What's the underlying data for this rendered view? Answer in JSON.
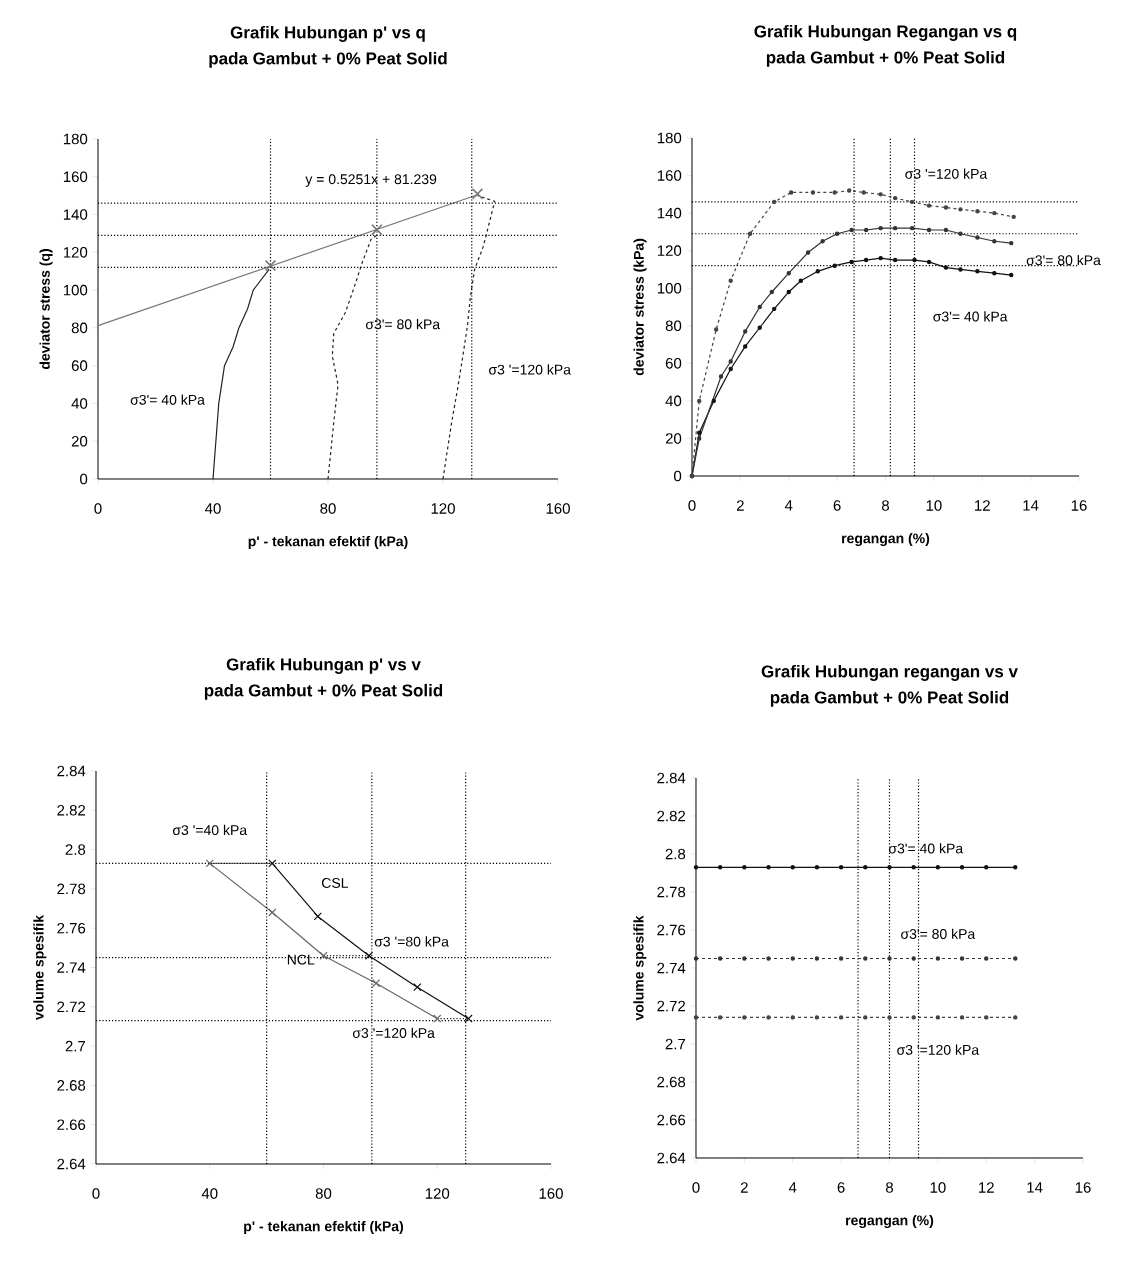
{
  "chart_data": [
    {
      "type": "line",
      "title": "Grafik Hubungan p' vs q",
      "subtitle": "pada Gambut + 0% Peat Solid",
      "xlabel": "p' - tekanan efektif (kPa)",
      "ylabel": "deviator stress (q)",
      "xlim": [
        0,
        160
      ],
      "xticks": [
        0,
        40,
        80,
        120,
        160
      ],
      "ylim": [
        0,
        180
      ],
      "yticks": [
        0,
        20,
        40,
        60,
        80,
        100,
        120,
        140,
        160,
        180
      ],
      "series": [
        {
          "name": "σ3'= 40 kPa",
          "color": "#222222",
          "line_style": "solid",
          "marker": "none",
          "x": [
            40,
            41,
            42,
            43,
            44,
            47,
            49,
            52,
            54,
            59.5
          ],
          "values": [
            0,
            20,
            40,
            50,
            60,
            70,
            80,
            90,
            100,
            111
          ]
        },
        {
          "name": "σ3'= 80 kPa",
          "color": "#222222",
          "line_style": "dashed",
          "marker": "none",
          "x": [
            80,
            82,
            83.5,
            81.5,
            82,
            86,
            89,
            92,
            95,
            97
          ],
          "values": [
            0,
            30,
            50,
            65,
            77,
            88,
            101,
            115,
            127,
            129
          ]
        },
        {
          "name": "σ3 '=120 kPa",
          "color": "#222222",
          "line_style": "dashed",
          "marker": "none",
          "x": [
            120,
            123,
            125,
            127,
            128.5,
            129.5,
            131,
            134,
            137,
            138,
            132
          ],
          "values": [
            0,
            30,
            47,
            66,
            81,
            96,
            111,
            123,
            141,
            147,
            150
          ]
        },
        {
          "name": "y = 0.5251x + 81.239",
          "color": "#777777",
          "line_style": "solid",
          "marker": "none",
          "x": [
            0,
            132
          ],
          "values": [
            81.2,
            150.5
          ]
        },
        {
          "type": "scatter",
          "color": "#777777",
          "marker": "cross",
          "x": [
            60,
            97,
            132
          ],
          "values": [
            113,
            132,
            151
          ]
        }
      ],
      "ref_lines": [
        {
          "axis": "y",
          "value": 146,
          "line_style": "dotted"
        },
        {
          "axis": "y",
          "value": 129,
          "line_style": "dotted"
        },
        {
          "axis": "y",
          "value": 112,
          "line_style": "dotted"
        },
        {
          "axis": "x",
          "value": 60,
          "line_style": "dotted"
        },
        {
          "axis": "x",
          "value": 97,
          "line_style": "dotted"
        },
        {
          "axis": "x",
          "value": 130,
          "line_style": "dotted"
        }
      ]
    },
    {
      "type": "line",
      "title": "Grafik Hubungan Regangan vs q",
      "subtitle": "pada Gambut + 0% Peat Solid",
      "xlabel": "regangan (%)",
      "ylabel": "deviator stress (kPa)",
      "xlim": [
        0,
        16
      ],
      "xticks": [
        0,
        2,
        4,
        6,
        8,
        10,
        12,
        14,
        16
      ],
      "ylim": [
        0,
        180
      ],
      "yticks": [
        0,
        20,
        40,
        60,
        80,
        100,
        120,
        140,
        160,
        180
      ],
      "series": [
        {
          "name": "σ3'= 40 kPa",
          "color": "#111111",
          "line_style": "solid",
          "marker": "circle",
          "x": [
            0,
            0.3,
            0.9,
            1.6,
            2.2,
            2.8,
            3.4,
            4.0,
            4.5,
            5.2,
            5.9,
            6.6,
            7.2,
            7.8,
            8.4,
            9.2,
            9.8,
            10.5,
            11.1,
            11.8,
            12.5,
            13.2
          ],
          "values": [
            0,
            23,
            40,
            57,
            69,
            79,
            89,
            98,
            104,
            109,
            112,
            114,
            115,
            116,
            115,
            115,
            114,
            111,
            110,
            109,
            108,
            107
          ]
        },
        {
          "name": "σ3'= 80 kPa",
          "color": "#333333",
          "line_style": "solid",
          "marker": "circle",
          "x": [
            0,
            0.3,
            1.2,
            1.6,
            2.2,
            2.8,
            3.3,
            4.0,
            4.8,
            5.4,
            6.0,
            6.6,
            7.2,
            7.8,
            8.4,
            9.1,
            9.8,
            10.5,
            11.1,
            11.8,
            12.5,
            13.2
          ],
          "values": [
            0,
            20,
            53,
            61,
            77,
            90,
            98,
            108,
            119,
            125,
            129,
            131,
            131,
            132,
            132,
            132,
            131,
            131,
            129,
            127,
            125,
            124
          ]
        },
        {
          "name": "σ3 '=120 kPa",
          "color": "#444444",
          "line_style": "dashed",
          "marker": "circle",
          "x": [
            0,
            0.3,
            1.0,
            1.6,
            2.4,
            3.4,
            4.1,
            5.0,
            5.9,
            6.5,
            7.1,
            7.8,
            8.4,
            9.1,
            9.8,
            10.5,
            11.1,
            11.8,
            12.5,
            13.3
          ],
          "values": [
            0,
            40,
            78,
            104,
            129,
            146,
            151,
            151,
            151,
            152,
            151,
            150,
            148,
            146,
            144,
            143,
            142,
            141,
            140,
            138
          ]
        }
      ],
      "ref_lines": [
        {
          "axis": "y",
          "value": 146,
          "line_style": "dotted"
        },
        {
          "axis": "y",
          "value": 129,
          "line_style": "dotted"
        },
        {
          "axis": "y",
          "value": 112,
          "line_style": "dotted"
        },
        {
          "axis": "x",
          "value": 6.7,
          "line_style": "dotted"
        },
        {
          "axis": "x",
          "value": 8.2,
          "line_style": "dotted"
        },
        {
          "axis": "x",
          "value": 9.2,
          "line_style": "dotted"
        }
      ]
    },
    {
      "type": "line",
      "title": "Grafik Hubungan p' vs v",
      "subtitle": "pada Gambut + 0% Peat Solid",
      "xlabel": "p' - tekanan efektif (kPa)",
      "ylabel": "volume spesifik",
      "xlim": [
        0,
        160
      ],
      "xticks": [
        0,
        40,
        80,
        120,
        160
      ],
      "ylim": [
        2.64,
        2.84
      ],
      "yticks": [
        2.64,
        2.66,
        2.68,
        2.7,
        2.72,
        2.74,
        2.76,
        2.78,
        2.8,
        2.82,
        2.84
      ],
      "series": [
        {
          "name": "NCL",
          "color": "#666666",
          "line_style": "solid",
          "marker": "cross",
          "x": [
            40,
            62,
            80,
            98.5,
            120
          ],
          "values": [
            2.793,
            2.768,
            2.746,
            2.732,
            2.714
          ]
        },
        {
          "name": "CSL",
          "color": "#111111",
          "line_style": "solid",
          "marker": "cross",
          "x": [
            62,
            78,
            96,
            113,
            131
          ],
          "values": [
            2.793,
            2.766,
            2.746,
            2.73,
            2.714
          ]
        },
        {
          "name": "σ3 '=40 kPa",
          "color": "#222222",
          "line_style": "dotted",
          "marker": "none",
          "x": [
            40,
            62
          ],
          "values": [
            2.793,
            2.793
          ]
        },
        {
          "name": "σ3 '=80 kPa",
          "color": "#222222",
          "line_style": "dotted",
          "marker": "none",
          "x": [
            80,
            96
          ],
          "values": [
            2.746,
            2.746
          ]
        },
        {
          "name": "σ3 '=120 kPa",
          "color": "#222222",
          "line_style": "dotted",
          "marker": "none",
          "x": [
            120,
            131
          ],
          "values": [
            2.714,
            2.714
          ]
        }
      ],
      "ref_lines": [
        {
          "axis": "y",
          "value": 2.793,
          "line_style": "dotted"
        },
        {
          "axis": "y",
          "value": 2.745,
          "line_style": "dotted"
        },
        {
          "axis": "y",
          "value": 2.713,
          "line_style": "dotted"
        },
        {
          "axis": "x",
          "value": 60,
          "line_style": "dotted"
        },
        {
          "axis": "x",
          "value": 97,
          "line_style": "dotted"
        },
        {
          "axis": "x",
          "value": 130,
          "line_style": "dotted"
        }
      ]
    },
    {
      "type": "line",
      "title": "Grafik Hubungan regangan vs v",
      "subtitle": "pada Gambut + 0% Peat Solid",
      "xlabel": "regangan (%)",
      "ylabel": "volume spesifik",
      "xlim": [
        0,
        16
      ],
      "xticks": [
        0,
        2,
        4,
        6,
        8,
        10,
        12,
        14,
        16
      ],
      "ylim": [
        2.64,
        2.84
      ],
      "yticks": [
        2.64,
        2.66,
        2.68,
        2.7,
        2.72,
        2.74,
        2.76,
        2.78,
        2.8,
        2.82,
        2.84
      ],
      "series": [
        {
          "name": "σ3'= 40 kPa",
          "color": "#111111",
          "line_style": "solid",
          "marker": "circle",
          "x": [
            0,
            1,
            2,
            3,
            4,
            5,
            6,
            7,
            8,
            9,
            10,
            11,
            12,
            13.2
          ],
          "values": [
            2.793,
            2.793,
            2.793,
            2.793,
            2.793,
            2.793,
            2.793,
            2.793,
            2.793,
            2.793,
            2.793,
            2.793,
            2.793,
            2.793
          ]
        },
        {
          "name": "σ3'= 80 kPa",
          "color": "#333333",
          "line_style": "dashed",
          "marker": "circle",
          "x": [
            0,
            1,
            2,
            3,
            4,
            5,
            6,
            7,
            8,
            9,
            10,
            11,
            12,
            13.2
          ],
          "values": [
            2.745,
            2.745,
            2.745,
            2.745,
            2.745,
            2.745,
            2.745,
            2.745,
            2.745,
            2.745,
            2.745,
            2.745,
            2.745,
            2.745
          ]
        },
        {
          "name": "σ3 '=120 kPa",
          "color": "#444444",
          "line_style": "dashed",
          "marker": "circle",
          "x": [
            0,
            1,
            2,
            3,
            4,
            5,
            6,
            7,
            8,
            9,
            10,
            11,
            12,
            13.2
          ],
          "values": [
            2.714,
            2.714,
            2.714,
            2.714,
            2.714,
            2.714,
            2.714,
            2.714,
            2.714,
            2.714,
            2.714,
            2.714,
            2.714,
            2.714
          ]
        }
      ],
      "ref_lines": [
        {
          "axis": "x",
          "value": 6.7,
          "line_style": "dotted"
        },
        {
          "axis": "x",
          "value": 8.0,
          "line_style": "dotted"
        },
        {
          "axis": "x",
          "value": 9.2,
          "line_style": "dotted"
        }
      ]
    }
  ]
}
